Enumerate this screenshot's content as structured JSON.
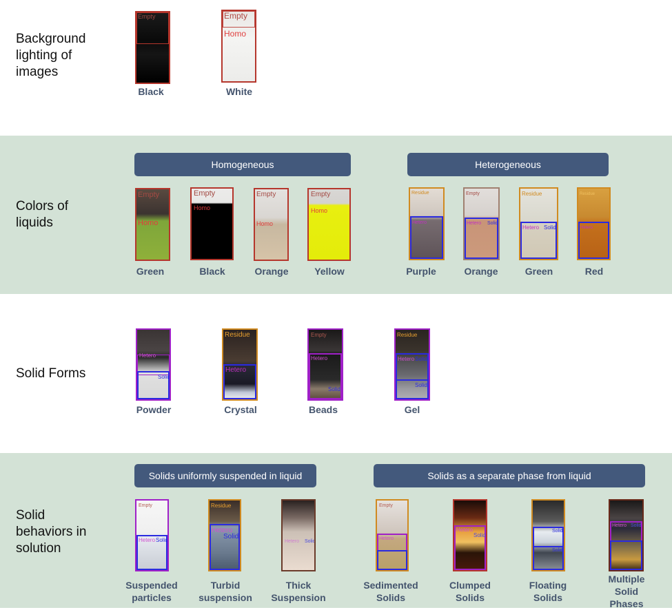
{
  "rows": {
    "background": {
      "label": "Background\nlighting of\nimages"
    },
    "colors": {
      "label": "Colors of\nliquids"
    },
    "solids": {
      "label": "Solid Forms"
    },
    "behaviors": {
      "label": "Solid\nbehaviors in\nsolution"
    }
  },
  "headers": {
    "homogeneous": "Homogeneous",
    "heterogeneous": "Heterogeneous",
    "suspended": "Solids uniformly suspended in liquid",
    "separate": "Solids as a separate phase from liquid"
  },
  "vial_labels": {
    "empty": "Empty",
    "homo": "Homo",
    "hetero": "Hetero",
    "solid": "Solid",
    "residue": "Residue"
  },
  "captions": {
    "background": [
      "Black",
      "White"
    ],
    "homogeneous": [
      "Green",
      "Black",
      "Orange",
      "Yellow"
    ],
    "heterogeneous": [
      "Purple",
      "Orange",
      "Green",
      "Red"
    ],
    "solid_forms": [
      "Powder",
      "Crystal",
      "Beads",
      "Gel"
    ],
    "behaviors": [
      "Suspended\nparticles",
      "Turbid\nsuspension",
      "Thick\nSuspension",
      "Sedimented\nSolids",
      "Clumped\nSolids",
      "Floating\nSolids",
      "Multiple\nSolid\nPhases"
    ]
  },
  "colors": {
    "panel_green": "#d3e2d6",
    "header_fill": "#43597c",
    "caption_text": "#44546d",
    "box_red": "#b5362c",
    "box_purple": "#a020c8",
    "box_blue": "#2a2ae0",
    "box_orange": "#d08a20"
  }
}
